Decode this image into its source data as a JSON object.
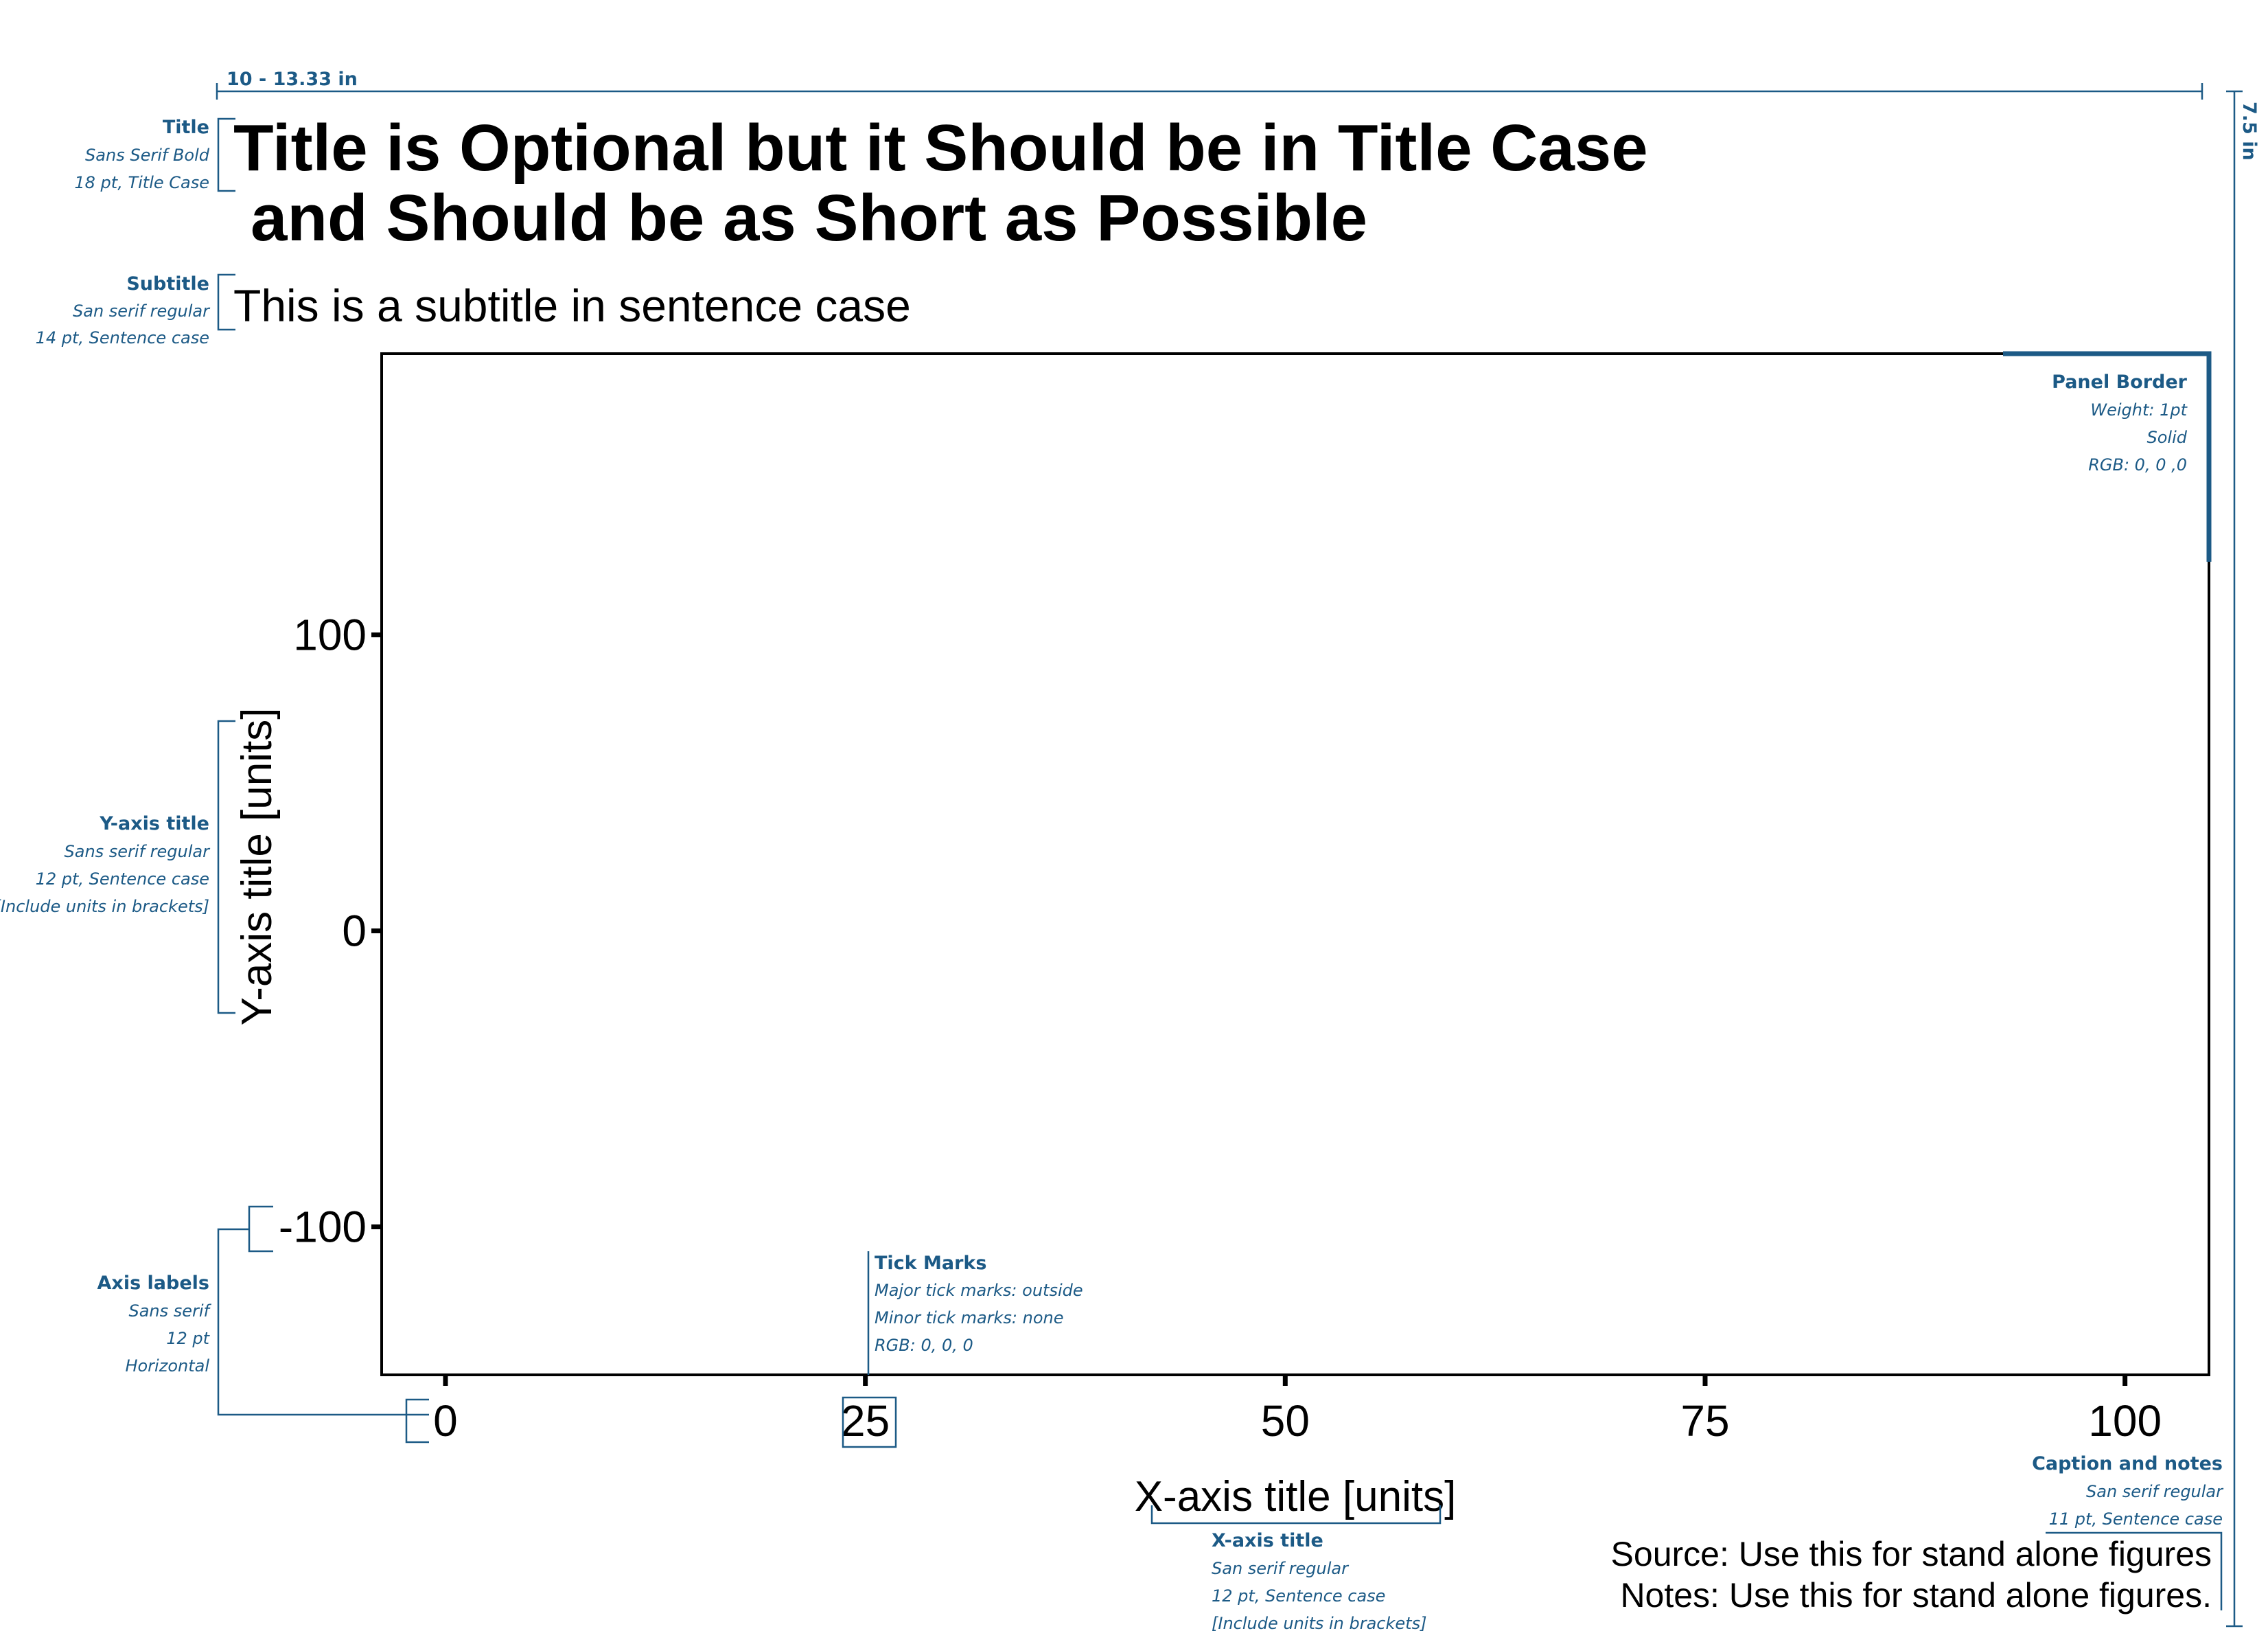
{
  "chart_data": {
    "type": "scatter",
    "title_lines": [
      "Title is Optional but it Should be in Title Case",
      "and Should be as Short as Possible"
    ],
    "subtitle": "This is a subtitle in sentence case",
    "xlabel": "X-axis title [units]",
    "ylabel": "Y-axis title [units]",
    "x_ticks": [
      0,
      25,
      50,
      75,
      100
    ],
    "y_ticks": [
      100,
      0,
      -100
    ],
    "xlim": [
      -3.8,
      105
    ],
    "ylim": [
      -150,
      195
    ],
    "caption_lines": [
      "Source: Use this for stand alone figures",
      "Notes: Use this for stand alone figures."
    ],
    "series": []
  },
  "dimensions": {
    "width_label": "10 - 13.33 in",
    "height_label": "7.5 in"
  },
  "annotations": {
    "title": {
      "head": "Title",
      "lines": [
        "Sans Serif Bold",
        "18 pt, Title Case"
      ]
    },
    "subtitle": {
      "head": "Subtitle",
      "lines": [
        "San serif regular",
        "14 pt, Sentence case"
      ]
    },
    "yaxis": {
      "head": "Y-axis title",
      "lines": [
        "Sans serif regular",
        "12 pt, Sentence case",
        "[Include units in brackets]"
      ]
    },
    "axis_labels": {
      "head": "Axis labels",
      "lines": [
        "Sans serif",
        "12 pt",
        "Horizontal"
      ]
    },
    "panel_border": {
      "head": "Panel Border",
      "lines": [
        "Weight: 1pt",
        "Solid",
        "RGB: 0, 0 ,0"
      ]
    },
    "tick_marks": {
      "head": "Tick Marks",
      "lines": [
        "Major tick marks: outside",
        "Minor tick marks: none",
        "RGB: 0, 0, 0"
      ]
    },
    "xaxis": {
      "head": "X-axis title",
      "lines": [
        "San serif regular",
        "12 pt, Sentence case",
        "[Include units in brackets]"
      ]
    },
    "caption": {
      "head": "Caption and notes",
      "lines": [
        "San serif regular",
        "11 pt, Sentence case"
      ]
    }
  },
  "colors": {
    "annotation": "#1c5a86",
    "panel": "#000000"
  }
}
